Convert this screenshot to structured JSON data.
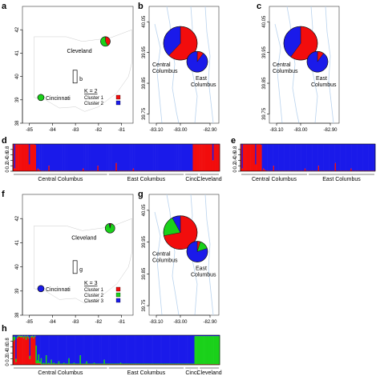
{
  "colors": {
    "cluster1": "#f20d0d",
    "cluster2": "#1ad11a",
    "cluster3": "#1a1aea",
    "frame": "#333333",
    "river": "#b9d3ee"
  },
  "chart_data": [
    {
      "id": "a",
      "type": "map",
      "panel_label": "a",
      "ylim": [
        38,
        43
      ],
      "yticks": [
        "38",
        "39",
        "40",
        "41",
        "42"
      ],
      "xlim": [
        -85.3,
        -80.5
      ],
      "xticks": [
        "-85",
        "-84",
        "-83",
        "-82",
        "-81"
      ],
      "cities": [
        {
          "name": "Cleveland",
          "lon": -81.7,
          "lat": 41.5,
          "pie": [
            0.42,
            0.58
          ]
        },
        {
          "name": "Cincinnati",
          "lon": -84.5,
          "lat": 39.1,
          "pie": [
            0.0,
            1.0
          ]
        }
      ],
      "inset": {
        "label": "b",
        "lon": -83.0,
        "lat": 39.96
      },
      "legend": {
        "title": "K = 2",
        "items": [
          "Cluster 1",
          "Cluster 2"
        ]
      }
    },
    {
      "id": "b",
      "type": "map",
      "panel_label": "b",
      "ylim": [
        39.72,
        40.1
      ],
      "yticks": [
        "39.75",
        "39.85",
        "39.95",
        "40.05"
      ],
      "xticks": [
        "-83.10",
        "-83.00",
        "-82.90"
      ],
      "sites": [
        {
          "name": "Central Columbus",
          "pie": [
            0.62,
            0.38
          ]
        },
        {
          "name": "East Columbus",
          "pie": [
            0.1,
            0.9
          ]
        }
      ]
    },
    {
      "id": "c",
      "type": "map",
      "panel_label": "c",
      "ylim": [
        39.72,
        40.1
      ],
      "yticks": [
        "39.75",
        "39.85",
        "39.95",
        "40.05"
      ],
      "xticks": [
        "-83.10",
        "-83.00",
        "-82.90"
      ],
      "sites": [
        {
          "name": "Central Columbus",
          "pie": [
            0.6,
            0.4
          ]
        },
        {
          "name": "East Columbus",
          "pie": [
            0.1,
            0.9
          ]
        }
      ]
    },
    {
      "id": "d",
      "type": "bar",
      "panel_label": "d",
      "stacked": true,
      "yticks": [
        "0",
        "0.2",
        "0.4",
        "0.6",
        "0.8"
      ],
      "groups": [
        "Central Columbus",
        "East Columbus",
        "Cinci",
        "Cleveland"
      ],
      "series": [
        {
          "values": [
            0.99,
            0.1,
            0.99,
            0.99,
            0.99,
            0.99,
            0.99,
            0.99,
            0.99,
            0.99,
            0.99,
            0.99,
            0.99,
            0.25,
            0.99,
            0.99,
            0.99,
            0.99,
            0.97,
            0.03,
            0.1,
            0.05,
            0.03,
            0.02,
            0.02,
            0.02,
            0.02,
            0.02,
            0.02,
            0.2,
            0.02,
            0.02,
            0.02,
            0.02,
            0.02,
            0.02,
            0.02,
            0.02,
            0.02,
            0.02,
            0.02,
            0.02,
            0.02,
            0.02,
            0.02,
            0.02,
            0.02,
            0.02,
            0.02,
            0.02,
            0.02,
            0.02,
            0.02,
            0.02,
            0.02,
            0.02,
            0.02,
            0.1,
            0.02,
            0.02,
            0.02,
            0.02,
            0.02,
            0.02,
            0.02,
            0.02,
            0.02,
            0.02,
            0.02,
            0.2,
            0.02,
            0.02,
            0.02,
            0.02,
            0.02,
            0.02,
            0.02,
            0.02,
            0.02,
            0.02,
            0.02,
            0.02,
            0.02,
            0.02,
            0.3,
            0.02,
            0.02,
            0.02,
            0.02,
            0.02,
            0.02,
            0.02,
            0.02,
            0.02,
            0.02,
            0.02,
            0.02,
            0.02,
            0.1,
            0.02,
            0.02,
            0.02,
            0.02,
            0.02,
            0.02,
            0.02,
            0.02,
            0.02,
            0.02,
            0.02,
            0.02,
            0.02,
            0.02,
            0.02,
            0.02,
            0.02,
            0.02,
            0.02,
            0.02,
            0.02,
            0.02,
            0.02,
            0.02,
            0.02,
            0.02,
            0.02,
            0.02,
            0.02,
            0.02,
            0.02,
            0.02,
            0.02,
            0.02,
            0.02,
            0.02,
            0.02,
            0.02,
            0.02,
            0.02,
            0.02,
            0.02,
            0.02,
            0.02,
            0.02,
            0.02,
            0.02,
            0.02,
            0.99,
            0.99,
            0.99,
            0.99,
            0.99,
            0.99,
            0.99,
            0.99,
            0.99,
            0.99,
            0.99,
            0.99,
            0.99,
            0.99,
            0.99,
            0.99,
            0.4,
            0.99,
            0.99,
            0.99,
            0.99,
            0.99
          ]
        }
      ]
    },
    {
      "id": "e",
      "type": "bar",
      "panel_label": "e",
      "stacked": true,
      "yticks": [
        "0",
        "0.2",
        "0.4",
        "0.6",
        "0.8"
      ],
      "groups": [
        "Central Columbus",
        "East Columbus"
      ],
      "series": [
        {
          "values": [
            0.99,
            0.1,
            0.99,
            0.99,
            0.99,
            0.99,
            0.99,
            0.99,
            0.99,
            0.99,
            0.99,
            0.99,
            0.99,
            0.25,
            0.99,
            0.99,
            0.99,
            0.99,
            0.97,
            0.03,
            0.1,
            0.05,
            0.03,
            0.02,
            0.02,
            0.02,
            0.02,
            0.02,
            0.02,
            0.2,
            0.02,
            0.02,
            0.02,
            0.02,
            0.02,
            0.02,
            0.02,
            0.02,
            0.02,
            0.02,
            0.02,
            0.02,
            0.02,
            0.02,
            0.02,
            0.02,
            0.02,
            0.02,
            0.02,
            0.02,
            0.02,
            0.02,
            0.02,
            0.02,
            0.02,
            0.02,
            0.02,
            0.1,
            0.02,
            0.02,
            0.02,
            0.02,
            0.02,
            0.02,
            0.02,
            0.02,
            0.02,
            0.02,
            0.02,
            0.2,
            0.02,
            0.02,
            0.02,
            0.02,
            0.02,
            0.02,
            0.02,
            0.02,
            0.02,
            0.02,
            0.02,
            0.02,
            0.02,
            0.02,
            0.3,
            0.02,
            0.02,
            0.02,
            0.02,
            0.02,
            0.02,
            0.02,
            0.02,
            0.02,
            0.02,
            0.02,
            0.02,
            0.02,
            0.1,
            0.02,
            0.02,
            0.02,
            0.02,
            0.02,
            0.02,
            0.02,
            0.02,
            0.02,
            0.02,
            0.02,
            0.02,
            0.02,
            0.02,
            0.02,
            0.02,
            0.02,
            0.02,
            0.02,
            0.02,
            0.02
          ]
        }
      ]
    },
    {
      "id": "f",
      "type": "map",
      "panel_label": "f",
      "ylim": [
        38,
        43
      ],
      "yticks": [
        "38",
        "39",
        "40",
        "41",
        "42"
      ],
      "xlim": [
        -85.3,
        -80.5
      ],
      "xticks": [
        "-85",
        "-84",
        "-83",
        "-82",
        "-81"
      ],
      "cities": [
        {
          "name": "Cleveland",
          "lon": -81.5,
          "lat": 41.6,
          "pie": [
            0.04,
            0.93,
            0.03
          ]
        },
        {
          "name": "Cincinnati",
          "lon": -84.5,
          "lat": 39.1,
          "pie": [
            0.0,
            0.0,
            1.0
          ]
        }
      ],
      "inset": {
        "label": "g",
        "lon": -83.0,
        "lat": 39.96
      },
      "legend": {
        "title": "K = 3",
        "items": [
          "Cluster 1",
          "Cluster 2",
          "Cluster 3"
        ]
      }
    },
    {
      "id": "g",
      "type": "map",
      "panel_label": "g",
      "ylim": [
        39.72,
        40.1
      ],
      "yticks": [
        "39.75",
        "39.85",
        "39.95",
        "40.05"
      ],
      "xticks": [
        "-83.10",
        "-83.00",
        "-82.90"
      ],
      "sites": [
        {
          "name": "Central Columbus",
          "pie": [
            0.72,
            0.2,
            0.08
          ]
        },
        {
          "name": "East Columbus",
          "pie": [
            0.05,
            0.15,
            0.8
          ]
        }
      ]
    },
    {
      "id": "h",
      "type": "bar",
      "panel_label": "h",
      "stacked": true,
      "yticks": [
        "0",
        "0.2",
        "0.4",
        "0.6",
        "0.8"
      ],
      "groups": [
        "Central Columbus",
        "East Columbus",
        "Cinci",
        "Cleveland"
      ],
      "series": [
        {
          "values": [
            0.8,
            0.85,
            0.1,
            0.9,
            0.95,
            0.95,
            0.92,
            0.95,
            0.9,
            0.95,
            0.85,
            0.95,
            0.9,
            0.2,
            0.92,
            0.95,
            0.9,
            0.95,
            0.05,
            0.05,
            0.05,
            0.05,
            0.02,
            0.02,
            0.02,
            0.02,
            0.02,
            0.02,
            0.02,
            0.02,
            0.02,
            0.02,
            0.02,
            0.02,
            0.02,
            0.02,
            0.02,
            0.02,
            0.02,
            0.02,
            0.02,
            0.02,
            0.02,
            0.02,
            0.02,
            0.02,
            0.02,
            0.02,
            0.02,
            0.02,
            0.02,
            0.02,
            0.02,
            0.02,
            0.02,
            0.02,
            0.02,
            0.02,
            0.02,
            0.02,
            0.02,
            0.02,
            0.02,
            0.02,
            0.02,
            0.02,
            0.02,
            0.02,
            0.02,
            0.02,
            0.02,
            0.02,
            0.02,
            0.02,
            0.02,
            0.02,
            0.02,
            0.02,
            0.02,
            0.02,
            0.02,
            0.02,
            0.02,
            0.02,
            0.02,
            0.02,
            0.02,
            0.02,
            0.02,
            0.02,
            0.02,
            0.02,
            0.02,
            0.02,
            0.02,
            0.02,
            0.02,
            0.02,
            0.02,
            0.02,
            0.02,
            0.02,
            0.02,
            0.02,
            0.02,
            0.02,
            0.02,
            0.02,
            0.02,
            0.02,
            0.02,
            0.02,
            0.02,
            0.02,
            0.02,
            0.02,
            0.02,
            0.02,
            0.02,
            0.02,
            0.02,
            0.02,
            0.02,
            0.02,
            0.02,
            0.02,
            0.02,
            0.02,
            0.02,
            0.02,
            0.02,
            0.02,
            0.02,
            0.02,
            0.02,
            0.02,
            0.02,
            0.02,
            0.02,
            0.02,
            0.02,
            0.02,
            0.02,
            0.02,
            0.02,
            0.02,
            0.02,
            0.02,
            0.02,
            0.02,
            0.02,
            0.02,
            0.02,
            0.02,
            0.02,
            0.02,
            0.02,
            0.02,
            0.02,
            0.02,
            0.02,
            0.02,
            0.02,
            0.02
          ]
        },
        {
          "values": [
            0.15,
            0.1,
            0.1,
            0.05,
            0.03,
            0.03,
            0.05,
            0.03,
            0.05,
            0.03,
            0.1,
            0.03,
            0.05,
            0.1,
            0.05,
            0.03,
            0.05,
            0.03,
            0.6,
            0.1,
            0.3,
            0.05,
            0.2,
            0.02,
            0.05,
            0.02,
            0.3,
            0.02,
            0.05,
            0.02,
            0.15,
            0.02,
            0.05,
            0.02,
            0.02,
            0.02,
            0.1,
            0.02,
            0.02,
            0.02,
            0.05,
            0.02,
            0.02,
            0.02,
            0.2,
            0.02,
            0.02,
            0.02,
            0.05,
            0.02,
            0.02,
            0.02,
            0.02,
            0.3,
            0.02,
            0.02,
            0.02,
            0.02,
            0.1,
            0.02,
            0.02,
            0.02,
            0.02,
            0.02,
            0.05,
            0.02,
            0.02,
            0.02,
            0.02,
            0.02,
            0.02,
            0.02,
            0.15,
            0.02,
            0.02,
            0.02,
            0.02,
            0.02,
            0.02,
            0.02,
            0.02,
            0.02,
            0.02,
            0.02,
            0.02,
            0.05,
            0.02,
            0.02,
            0.02,
            0.02,
            0.02,
            0.02,
            0.02,
            0.02,
            0.02,
            0.02,
            0.02,
            0.02,
            0.02,
            0.02,
            0.02,
            0.02,
            0.02,
            0.02,
            0.02,
            0.02,
            0.02,
            0.02,
            0.02,
            0.02,
            0.02,
            0.02,
            0.02,
            0.02,
            0.02,
            0.02,
            0.02,
            0.02,
            0.02,
            0.02,
            0.02,
            0.02,
            0.02,
            0.02,
            0.02,
            0.02,
            0.02,
            0.02,
            0.02,
            0.02,
            0.02,
            0.02,
            0.02,
            0.02,
            0.02,
            0.02,
            0.02,
            0.02,
            0.02,
            0.02,
            0.02,
            0.02,
            0.02,
            0.02,
            0.95,
            0.95,
            0.95,
            0.95,
            0.95,
            0.95,
            0.95,
            0.95,
            0.95,
            0.95,
            0.95,
            0.95,
            0.95,
            0.95,
            0.95,
            0.95,
            0.95,
            0.95,
            0.95,
            0.95,
            0.95,
            0.95,
            0.95
          ]
        }
      ]
    }
  ]
}
